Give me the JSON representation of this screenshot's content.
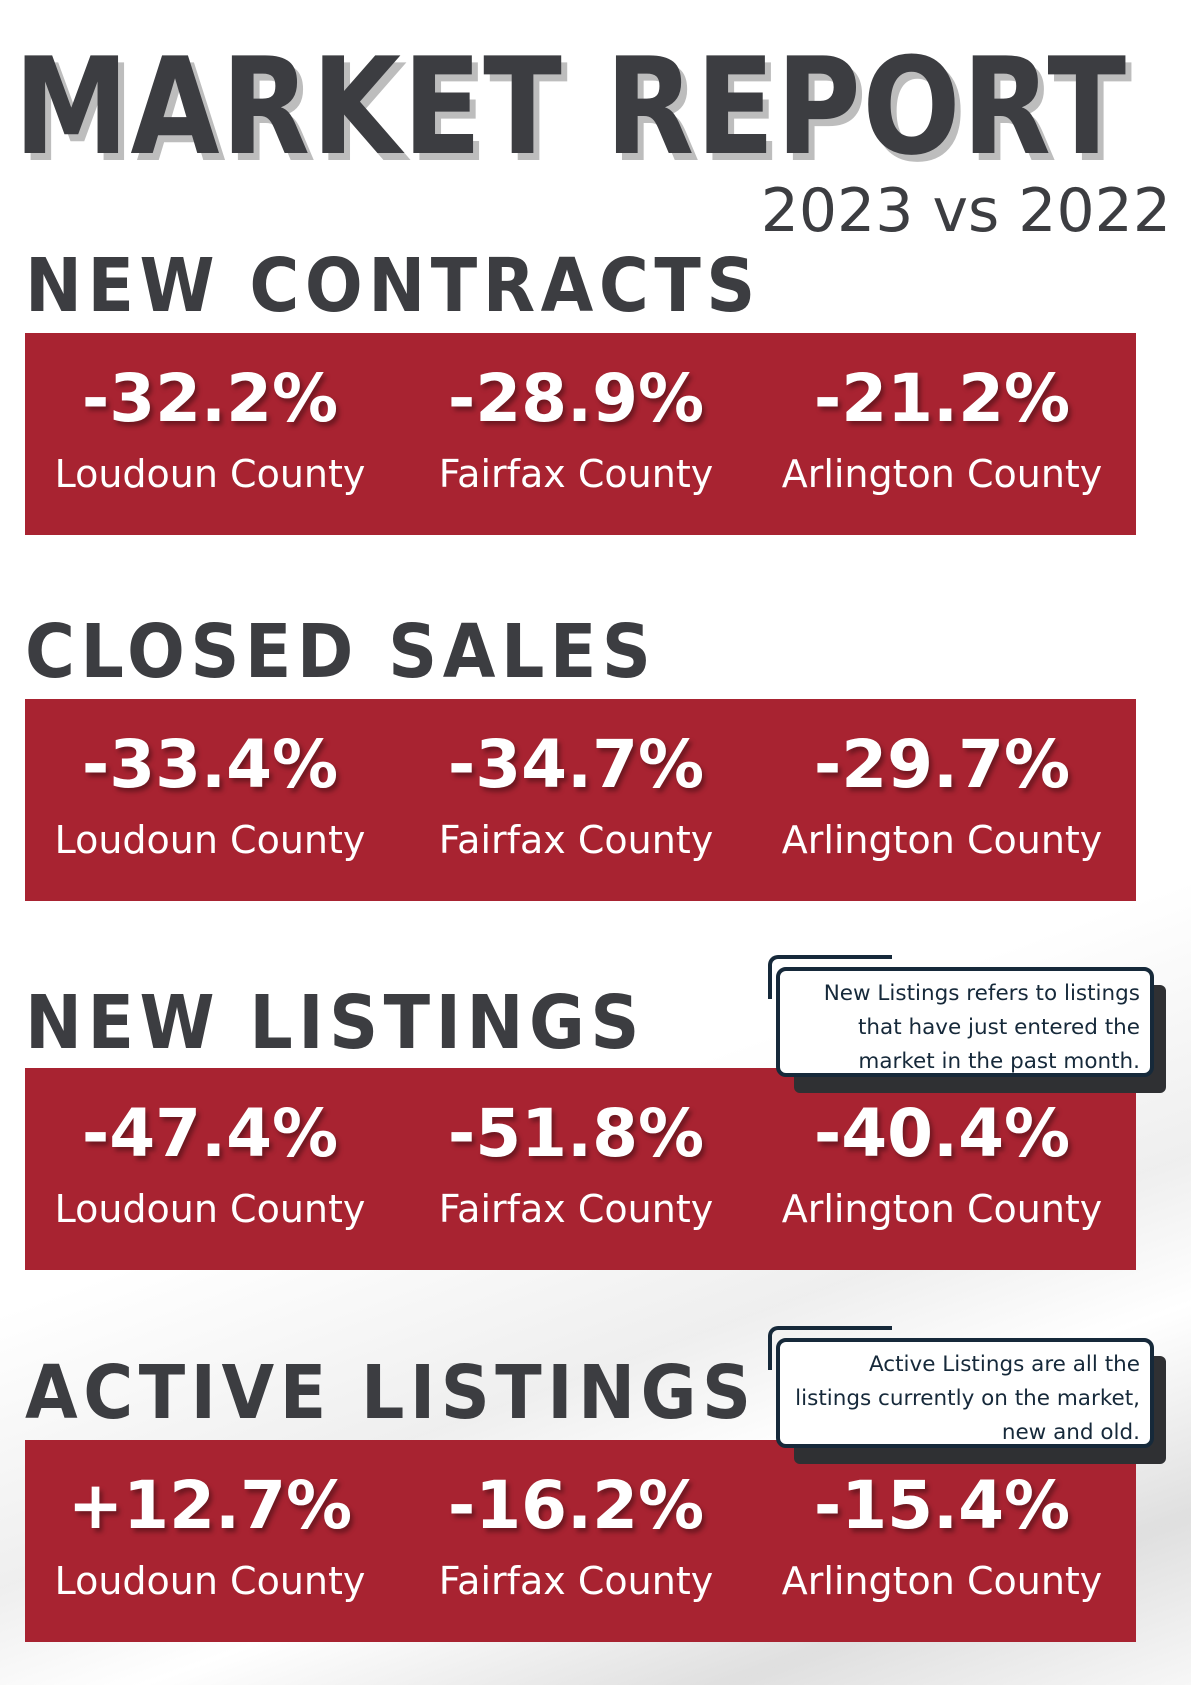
{
  "report": {
    "title": "MARKET REPORT",
    "subtitle": "2023 vs 2022"
  },
  "colors": {
    "accent_red": "#a82331",
    "heading_gray": "#3c3d41",
    "note_navy": "#16293a"
  },
  "sections": [
    {
      "title": "NEW CONTRACTS",
      "stats": [
        {
          "value": "-32.2%",
          "label": "Loudoun County"
        },
        {
          "value": "-28.9%",
          "label": "Fairfax County"
        },
        {
          "value": "-21.2%",
          "label": "Arlington County"
        }
      ]
    },
    {
      "title": "CLOSED SALES",
      "stats": [
        {
          "value": "-33.4%",
          "label": "Loudoun County"
        },
        {
          "value": "-34.7%",
          "label": "Fairfax County"
        },
        {
          "value": "-29.7%",
          "label": "Arlington County"
        }
      ]
    },
    {
      "title": "NEW LISTINGS",
      "note": "New Listings refers to listings that have just entered the market in the past month.",
      "stats": [
        {
          "value": "-47.4%",
          "label": "Loudoun County"
        },
        {
          "value": "-51.8%",
          "label": "Fairfax County"
        },
        {
          "value": "-40.4%",
          "label": "Arlington County"
        }
      ]
    },
    {
      "title": "ACTIVE LISTINGS",
      "note": "Active Listings are all the listings currently on the market, new and old.",
      "stats": [
        {
          "value": "+12.7%",
          "label": "Loudoun County"
        },
        {
          "value": "-16.2%",
          "label": "Fairfax County"
        },
        {
          "value": "-15.4%",
          "label": "Arlington County"
        }
      ]
    }
  ]
}
